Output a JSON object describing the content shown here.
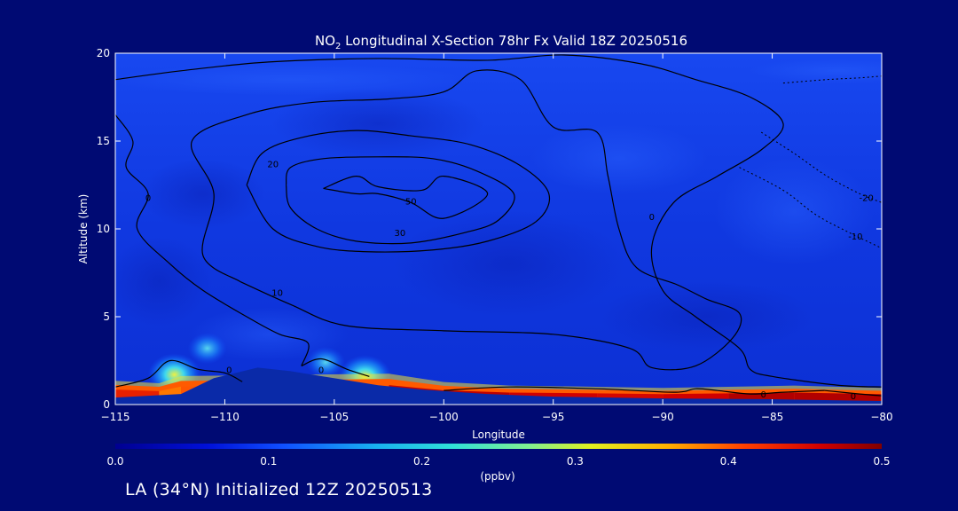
{
  "footer": {
    "text": "LA (34°N) Initialized 12Z 20250513"
  },
  "colors": {
    "background": "#000a73",
    "plot_base": "#1040e8",
    "terrain": "#0a2aa8",
    "contour": "#000000",
    "axis": "#ffffff"
  },
  "chart_data": {
    "type": "heatmap",
    "title_parts": [
      "NO",
      "2",
      " Longitudinal X-Section 78hr  Fx Valid 18Z 20250516"
    ],
    "xlabel": "Longitude",
    "ylabel": "Altitude (km)",
    "xlim": [
      -115,
      -80
    ],
    "ylim": [
      0,
      20
    ],
    "xticks": [
      -115,
      -110,
      -105,
      -100,
      -95,
      -90,
      -85,
      -80
    ],
    "xtick_labels": [
      "−115",
      "−110",
      "−105",
      "−100",
      "−95",
      "−90",
      "−85",
      "−80"
    ],
    "yticks": [
      0,
      5,
      10,
      15,
      20
    ],
    "ytick_labels": [
      "0",
      "5",
      "10",
      "15",
      "20"
    ],
    "colorbar": {
      "min": 0.0,
      "max": 0.5,
      "unit": "(ppbv)",
      "ticks": [
        0.0,
        0.1,
        0.2,
        0.3,
        0.4,
        0.5
      ],
      "tick_labels": [
        "0.0",
        "0.1",
        "0.2",
        "0.3",
        "0.4",
        "0.5"
      ]
    },
    "surface_band": [
      {
        "x": -115,
        "top": 1.0,
        "value": 0.45
      },
      {
        "x": -113,
        "top": 0.9,
        "value": 0.42
      },
      {
        "x": -112,
        "top": 1.2,
        "value": 0.35
      },
      {
        "x": -102.5,
        "top": 1.3,
        "value": 0.45
      },
      {
        "x": -100,
        "top": 0.95,
        "value": 0.48
      },
      {
        "x": -97,
        "top": 0.8,
        "value": 0.46
      },
      {
        "x": -93,
        "top": 0.75,
        "value": 0.46
      },
      {
        "x": -90,
        "top": 0.7,
        "value": 0.45
      },
      {
        "x": -87,
        "top": 0.75,
        "value": 0.47
      },
      {
        "x": -84,
        "top": 0.8,
        "value": 0.48
      },
      {
        "x": -80,
        "top": 0.7,
        "value": 0.47
      }
    ],
    "plumes": [
      {
        "x": -112.3,
        "y": 1.7,
        "value": 0.25
      },
      {
        "x": -110.8,
        "y": 3.2,
        "value": 0.12
      },
      {
        "x": -105.4,
        "y": 2.4,
        "value": 0.15
      },
      {
        "x": -103.6,
        "y": 1.6,
        "value": 0.2
      }
    ],
    "terrain_profile": [
      [
        -115,
        0.4
      ],
      [
        -112,
        0.6
      ],
      [
        -110.5,
        1.5
      ],
      [
        -108.5,
        2.1
      ],
      [
        -107,
        1.9
      ],
      [
        -105.5,
        1.6
      ],
      [
        -104.5,
        1.4
      ],
      [
        -103,
        1.1
      ],
      [
        -101,
        0.85
      ],
      [
        -98,
        0.6
      ],
      [
        -95,
        0.45
      ],
      [
        -90,
        0.35
      ],
      [
        -85,
        0.3
      ],
      [
        -80,
        0.2
      ]
    ],
    "contours": [
      {
        "level": "50",
        "label_at": [
          -101.5,
          11.6
        ],
        "points": [
          [
            -105.5,
            12.3
          ],
          [
            -104.0,
            13.0
          ],
          [
            -103.0,
            12.4
          ],
          [
            -101.0,
            12.2
          ],
          [
            -100.0,
            13.0
          ],
          [
            -98.0,
            12.0
          ],
          [
            -100.0,
            10.6
          ],
          [
            -101.5,
            11.5
          ],
          [
            -103.0,
            12.0
          ],
          [
            -104.0,
            12.0
          ],
          [
            -105.5,
            12.3
          ]
        ]
      },
      {
        "level": "30",
        "label_at": [
          -102.0,
          9.8
        ],
        "points": [
          [
            -107.2,
            12.5
          ],
          [
            -107.0,
            13.5
          ],
          [
            -105.5,
            14.0
          ],
          [
            -103.0,
            14.1
          ],
          [
            -100.5,
            14.0
          ],
          [
            -98.5,
            13.3
          ],
          [
            -96.8,
            12.0
          ],
          [
            -97.5,
            10.5
          ],
          [
            -99.0,
            9.8
          ],
          [
            -101.5,
            9.2
          ],
          [
            -104.0,
            9.3
          ],
          [
            -105.8,
            10.0
          ],
          [
            -107.0,
            11.2
          ],
          [
            -107.2,
            12.5
          ]
        ]
      },
      {
        "level": "20",
        "label_at": [
          -107.8,
          13.7
        ],
        "points": [
          [
            -109.0,
            12.5
          ],
          [
            -108.3,
            14.3
          ],
          [
            -106.5,
            15.2
          ],
          [
            -104.0,
            15.6
          ],
          [
            -101.5,
            15.3
          ],
          [
            -98.8,
            14.8
          ],
          [
            -96.5,
            13.6
          ],
          [
            -95.2,
            12.0
          ],
          [
            -95.8,
            10.4
          ],
          [
            -98.0,
            9.3
          ],
          [
            -100.5,
            8.8
          ],
          [
            -103.5,
            8.7
          ],
          [
            -105.8,
            9.0
          ],
          [
            -107.8,
            10.0
          ],
          [
            -109.0,
            12.5
          ]
        ]
      },
      {
        "level": "10",
        "label_at": [
          -107.6,
          6.4
        ],
        "points": [
          [
            -109.3,
            7.0
          ],
          [
            -111.0,
            8.5
          ],
          [
            -110.5,
            12.0
          ],
          [
            -111.5,
            15.0
          ],
          [
            -109.0,
            16.5
          ],
          [
            -106.0,
            17.2
          ],
          [
            -102.5,
            17.4
          ],
          [
            -100.0,
            17.8
          ],
          [
            -98.5,
            19.0
          ],
          [
            -96.5,
            18.5
          ],
          [
            -95.0,
            15.8
          ],
          [
            -93.0,
            15.5
          ],
          [
            -92.5,
            13.0
          ],
          [
            -92.0,
            10.0
          ],
          [
            -91.2,
            7.8
          ],
          [
            -89.3,
            6.8
          ],
          [
            -88.0,
            6.0
          ],
          [
            -86.5,
            5.2
          ],
          [
            -86.8,
            3.8
          ],
          [
            -88.5,
            2.2
          ],
          [
            -90.5,
            2.1
          ],
          [
            -91.5,
            3.2
          ],
          [
            -95.0,
            4.0
          ],
          [
            -100.0,
            4.2
          ],
          [
            -104.5,
            4.5
          ],
          [
            -107.0,
            5.7
          ],
          [
            -109.3,
            7.0
          ]
        ]
      },
      {
        "level": "0",
        "label_at": [
          -109.8,
          2.0
        ],
        "points": [
          [
            -115.0,
            1.0
          ],
          [
            -113.5,
            1.5
          ],
          [
            -112.5,
            2.5
          ],
          [
            -111.2,
            2.0
          ],
          [
            -110.0,
            1.8
          ],
          [
            -109.2,
            1.3
          ]
        ]
      },
      {
        "level": "0",
        "label_at": [
          -105.6,
          2.0
        ],
        "points": [
          [
            -106.5,
            2.2
          ],
          [
            -105.6,
            2.6
          ],
          [
            -104.4,
            2.0
          ],
          [
            -103.4,
            1.6
          ]
        ]
      },
      {
        "level": "0",
        "label_at": [
          -81.3,
          0.5
        ],
        "points": [
          [
            -82.6,
            0.8
          ],
          [
            -81.0,
            0.6
          ],
          [
            -80.0,
            0.5
          ]
        ]
      },
      {
        "level": "0",
        "label_at": [
          -113.5,
          11.8
        ],
        "points": [
          [
            -115.0,
            16.5
          ],
          [
            -114.2,
            15.0
          ],
          [
            -114.5,
            13.5
          ],
          [
            -113.5,
            12.0
          ],
          [
            -114.0,
            10.0
          ],
          [
            -112.5,
            8.0
          ],
          [
            -111.0,
            6.5
          ],
          [
            -109.0,
            5.0
          ],
          [
            -107.5,
            4.0
          ],
          [
            -106.2,
            3.5
          ],
          [
            -106.5,
            2.2
          ]
        ]
      },
      {
        "level": "0",
        "label_at": [
          -90.5,
          10.7
        ],
        "points": [
          [
            -115.0,
            18.5
          ],
          [
            -112.0,
            19.0
          ],
          [
            -108.0,
            19.5
          ],
          [
            -103.0,
            19.7
          ],
          [
            -98.0,
            19.6
          ],
          [
            -94.5,
            19.9
          ],
          [
            -91.0,
            19.4
          ],
          [
            -88.5,
            18.5
          ],
          [
            -86.0,
            17.5
          ],
          [
            -84.5,
            16.0
          ],
          [
            -85.5,
            14.5
          ],
          [
            -87.5,
            13.0
          ],
          [
            -89.5,
            11.5
          ],
          [
            -90.5,
            9.0
          ],
          [
            -90.0,
            6.5
          ],
          [
            -88.5,
            5.0
          ],
          [
            -86.5,
            3.2
          ],
          [
            -86.0,
            2.0
          ],
          [
            -85.0,
            1.6
          ],
          [
            -82.0,
            1.1
          ],
          [
            -80.0,
            1.0
          ]
        ]
      },
      {
        "level": "0",
        "label_at": [
          -85.4,
          0.6
        ],
        "points": [
          [
            -100.0,
            0.8
          ],
          [
            -97.0,
            1.0
          ],
          [
            -93.0,
            0.9
          ],
          [
            -89.5,
            0.7
          ],
          [
            -88.5,
            0.9
          ],
          [
            -87.5,
            0.8
          ],
          [
            -86.0,
            0.6
          ],
          [
            -84.5,
            0.7
          ],
          [
            -82.6,
            0.8
          ]
        ]
      }
    ],
    "dotted_contours": [
      {
        "level": "-10",
        "label_at": [
          -81.2,
          9.6
        ],
        "points": [
          [
            -86.5,
            13.5
          ],
          [
            -84.5,
            12.2
          ],
          [
            -83.0,
            10.8
          ],
          [
            -81.5,
            9.8
          ],
          [
            -80.0,
            8.9
          ]
        ]
      },
      {
        "level": "-20",
        "label_at": [
          -80.7,
          11.8
        ],
        "points": [
          [
            -85.5,
            15.5
          ],
          [
            -84.0,
            14.3
          ],
          [
            -82.5,
            13.0
          ],
          [
            -81.0,
            12.0
          ],
          [
            -80.0,
            11.5
          ]
        ]
      },
      {
        "level": "",
        "label_at": null,
        "points": [
          [
            -84.5,
            18.3
          ],
          [
            -82.5,
            18.5
          ],
          [
            -81.0,
            18.6
          ],
          [
            -80.0,
            18.7
          ]
        ]
      }
    ]
  }
}
